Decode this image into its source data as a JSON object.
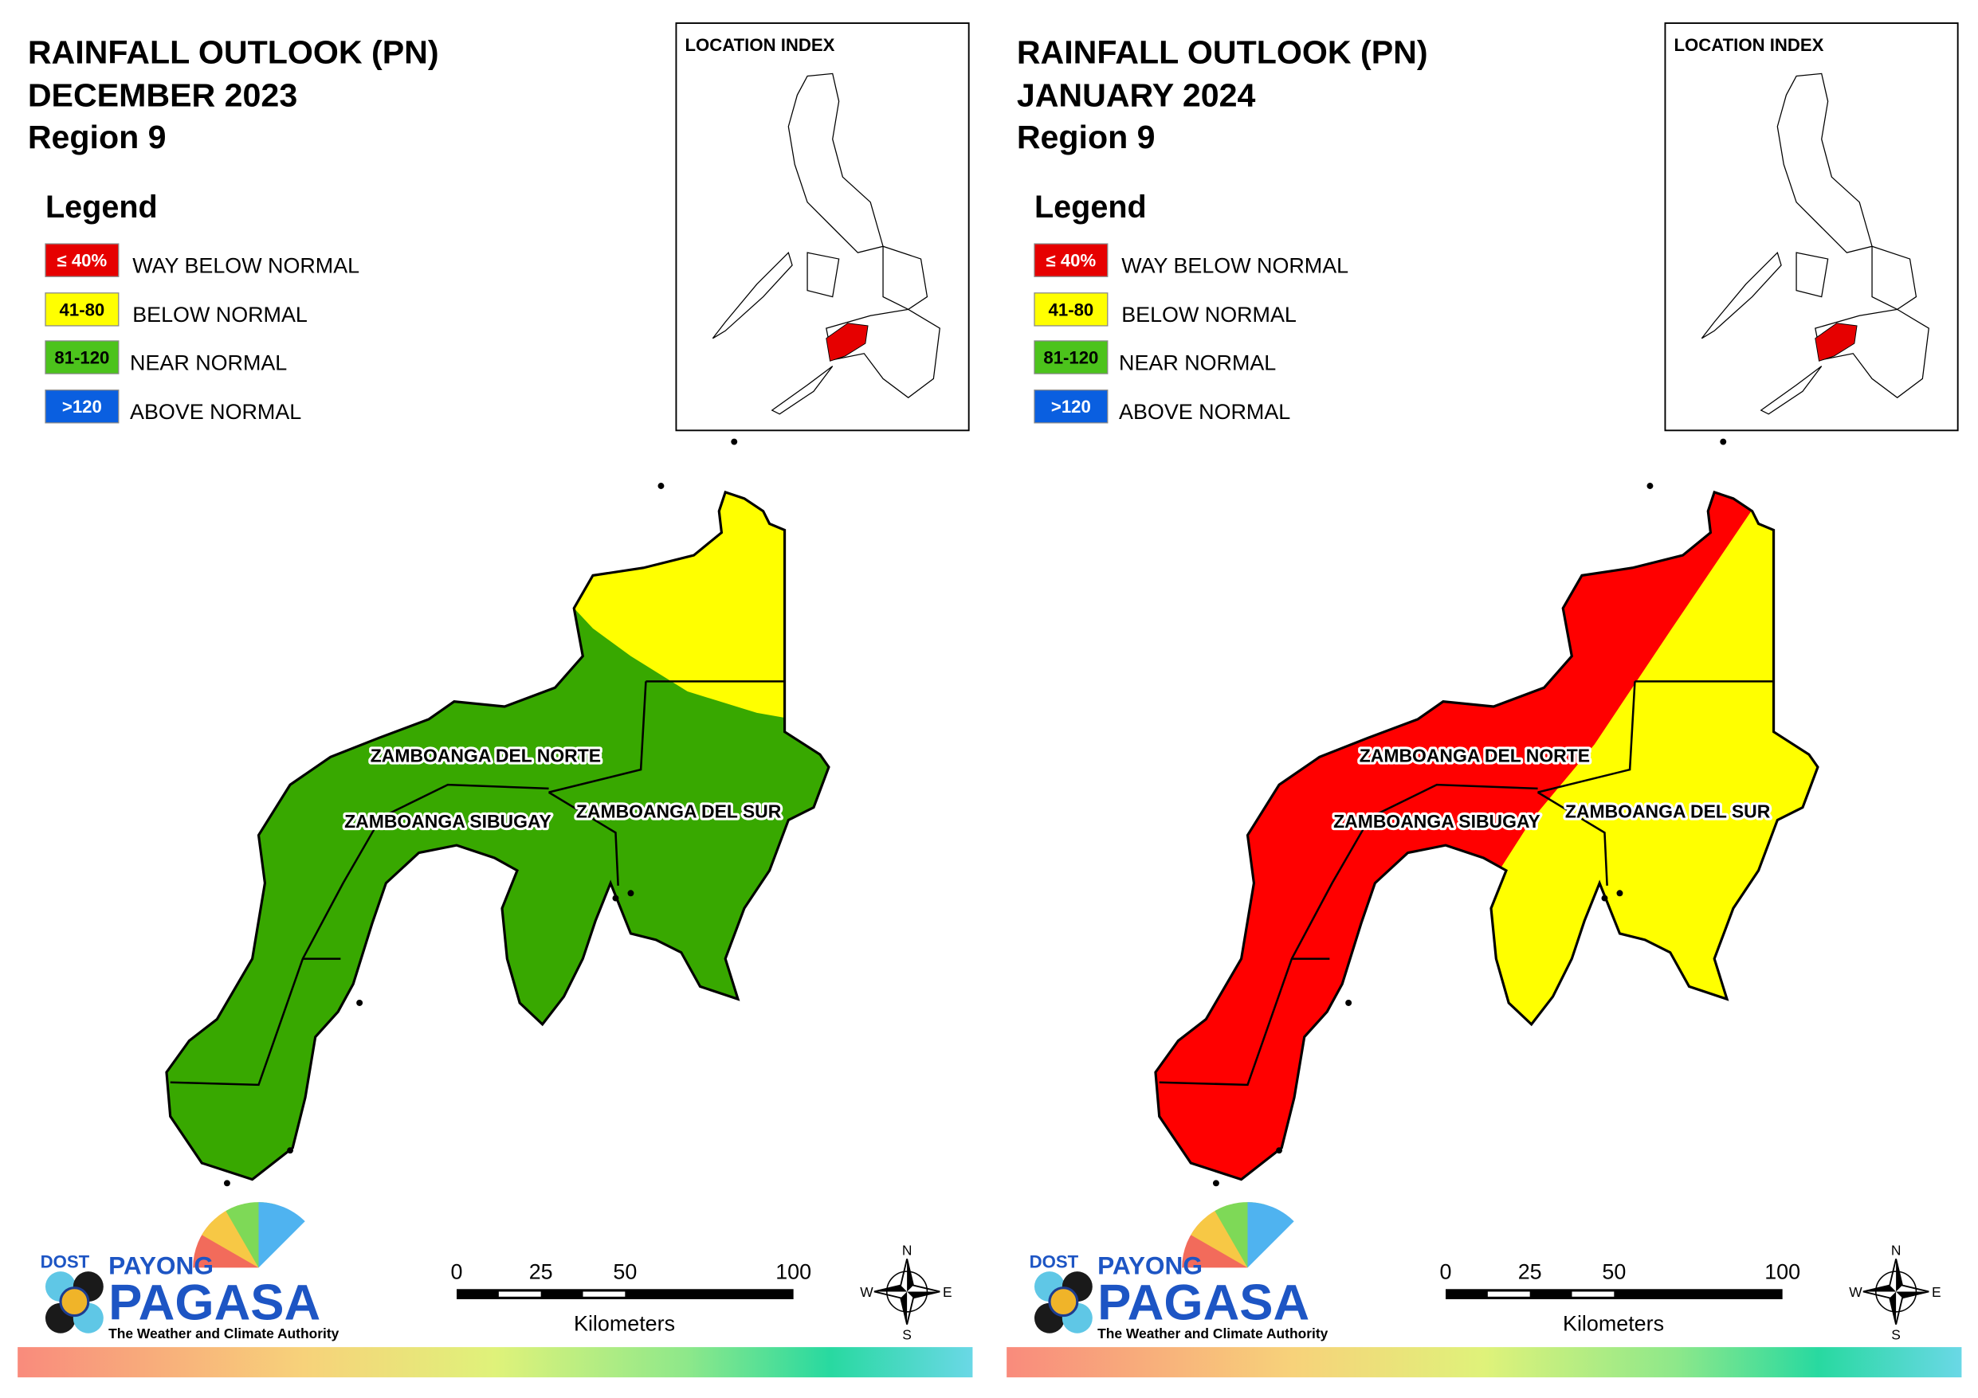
{
  "panels": [
    {
      "title": "RAINFALL OUTLOOK (PN)",
      "period": "DECEMBER 2023",
      "region": "Region 9",
      "fills": {
        "west": "#38a800",
        "east": "#ffff00"
      }
    },
    {
      "title": "RAINFALL OUTLOOK (PN)",
      "period": "JANUARY 2024",
      "region": "Region 9",
      "fills": {
        "west": "#ff0000",
        "east": "#ffff00"
      }
    }
  ],
  "legend": {
    "title": "Legend",
    "items": [
      {
        "key": "≤ 40%",
        "label": "WAY BELOW NORMAL",
        "color": "#e60000",
        "text_color": "#ffffff"
      },
      {
        "key": "41-80",
        "label": "BELOW NORMAL",
        "color": "#ffff00",
        "text_color": "#000000"
      },
      {
        "key": "81-120",
        "label": "NEAR NORMAL",
        "color": "#4cc31c",
        "text_color": "#000000"
      },
      {
        "key": ">120",
        "label": "ABOVE NORMAL",
        "color": "#0a5fe0",
        "text_color": "#ffffff"
      }
    ]
  },
  "location_index": "LOCATION INDEX",
  "provinces": [
    "ZAMBOANGA DEL NORTE",
    "ZAMBOANGA SIBUGAY",
    "ZAMBOANGA DEL SUR"
  ],
  "scale": {
    "ticks": [
      0,
      25,
      50,
      100
    ],
    "unit": "Kilometers"
  },
  "compass": {
    "n": "N",
    "e": "E",
    "s": "S",
    "w": "W"
  },
  "logo": {
    "agency": "DOST",
    "brand_top": "PAYONG",
    "brand": "PAGASA",
    "tagline": "The Weather and Climate Authority"
  }
}
